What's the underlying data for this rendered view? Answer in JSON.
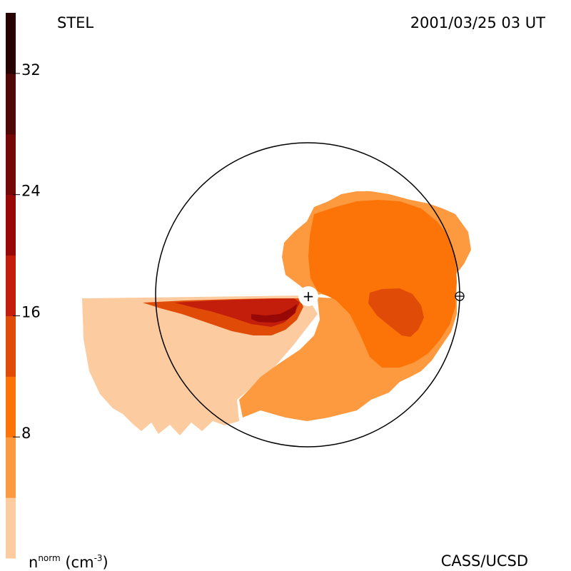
{
  "header": {
    "left_label": "STEL",
    "timestamp": "2001/03/25 03 UT"
  },
  "footer": {
    "credit": "CASS/UCSD",
    "units_symbol": "n",
    "units_superscript": "norm",
    "units_unit": "(cm",
    "units_exponent": "-3",
    "units_close": ")"
  },
  "colorbar": {
    "tick_labels": [
      "32",
      "24",
      "16",
      "8"
    ],
    "tick_values": [
      32,
      24,
      16,
      8
    ],
    "range": [
      0,
      36
    ],
    "levels": [
      {
        "from": 0,
        "to": 4,
        "color": "#fdcba0"
      },
      {
        "from": 4,
        "to": 8,
        "color": "#fd9a40"
      },
      {
        "from": 8,
        "to": 12,
        "color": "#fc7407"
      },
      {
        "from": 12,
        "to": 16,
        "color": "#e04c07"
      },
      {
        "from": 16,
        "to": 20,
        "color": "#c21e0b"
      },
      {
        "from": 20,
        "to": 24,
        "color": "#980807"
      },
      {
        "from": 24,
        "to": 28,
        "color": "#760707"
      },
      {
        "from": 28,
        "to": 32,
        "color": "#4f0707"
      },
      {
        "from": 32,
        "to": 36,
        "color": "#270202"
      }
    ]
  },
  "markers": {
    "sun_symbol": "+",
    "earth_symbol": "⊕"
  }
}
